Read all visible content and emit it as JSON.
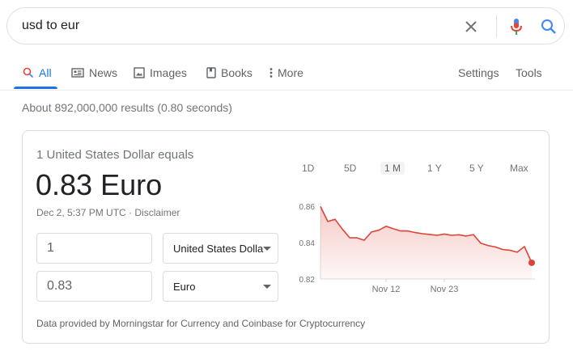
{
  "search": {
    "query": "usd to eur"
  },
  "tabs": {
    "all": "All",
    "news": "News",
    "images": "Images",
    "books": "Books",
    "more": "More",
    "settings": "Settings",
    "tools": "Tools"
  },
  "result_stats": "About 892,000,000 results (0.80 seconds)",
  "converter": {
    "equals_label": "1 United States Dollar equals",
    "value": "0.83 Euro",
    "timestamp": "Dec 2, 5:37 PM UTC · ",
    "disclaimer": "Disclaimer",
    "from_amount": "1",
    "to_amount": "0.83",
    "from_currency": "United States Dollar",
    "to_currency": "Euro",
    "source": "Data provided by Morningstar for Currency and Coinbase for Cryptocurrency"
  },
  "ranges": [
    "1D",
    "5D",
    "1 M",
    "1 Y",
    "5 Y",
    "Max"
  ],
  "active_range": "1 M",
  "colors": {
    "accent": "#1a73e8",
    "line": "#db4437",
    "mic_red": "#ea4335"
  },
  "chart_data": {
    "type": "area",
    "title": "",
    "xlabel": "",
    "ylabel": "",
    "ylim": [
      0.82,
      0.86
    ],
    "yticks": [
      "0.86",
      "0.84",
      "0.82"
    ],
    "xticks": [
      {
        "label": "Nov 12",
        "index": 9
      },
      {
        "label": "Nov 23",
        "index": 17
      }
    ],
    "values": [
      0.8598,
      0.8516,
      0.8528,
      0.8474,
      0.8427,
      0.8426,
      0.8413,
      0.8458,
      0.8468,
      0.849,
      0.8476,
      0.8464,
      0.8464,
      0.8455,
      0.8449,
      0.8445,
      0.844,
      0.8447,
      0.844,
      0.8443,
      0.8436,
      0.8444,
      0.8397,
      0.8384,
      0.8376,
      0.8362,
      0.8358,
      0.8347,
      0.8378,
      0.8289
    ],
    "grid": false
  }
}
